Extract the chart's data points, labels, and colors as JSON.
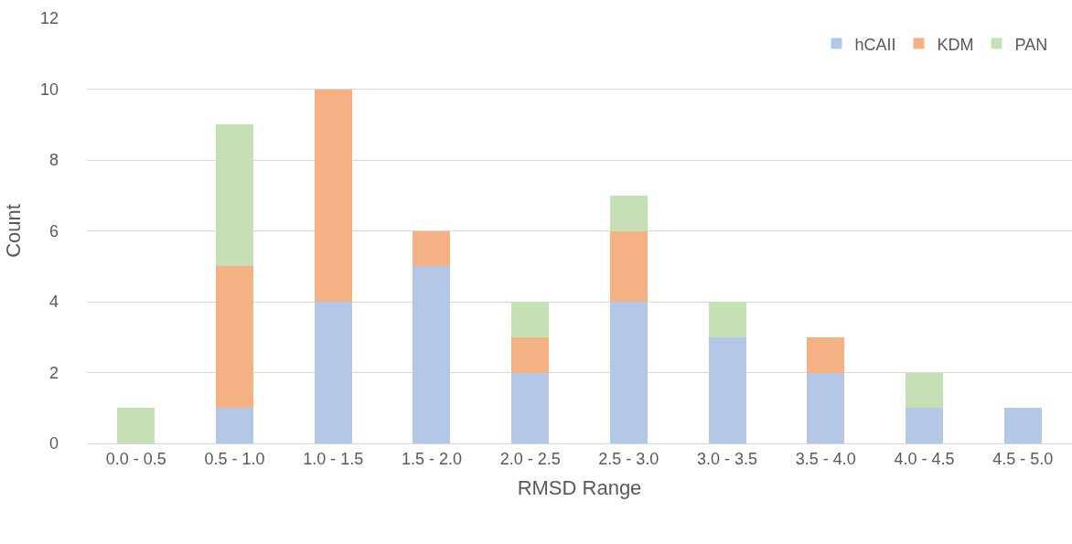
{
  "chart_data": {
    "type": "bar",
    "stacked": true,
    "xlabel": "RMSD Range",
    "ylabel": "Count",
    "categories": [
      "0.0 - 0.5",
      "0.5 - 1.0",
      "1.0 - 1.5",
      "1.5 - 2.0",
      "2.0 - 2.5",
      "2.5 - 3.0",
      "3.0 - 3.5",
      "3.5 - 4.0",
      "4.0 - 4.5",
      "4.5 - 5.0"
    ],
    "series": [
      {
        "name": "hCAII",
        "color": "#b4c7e7",
        "values": [
          0,
          1,
          4,
          5,
          2,
          4,
          3,
          2,
          1,
          1
        ]
      },
      {
        "name": "KDM",
        "color": "#f4b183",
        "values": [
          0,
          4,
          6,
          1,
          1,
          2,
          0,
          1,
          0,
          0
        ]
      },
      {
        "name": "PAN",
        "color": "#c5e0b4",
        "values": [
          1,
          4,
          0,
          0,
          1,
          1,
          1,
          0,
          1,
          0
        ]
      }
    ],
    "ylim": [
      0,
      12
    ],
    "yticks": [
      0,
      2,
      4,
      6,
      8,
      10,
      12
    ],
    "grid": "y",
    "legend": "top right"
  }
}
